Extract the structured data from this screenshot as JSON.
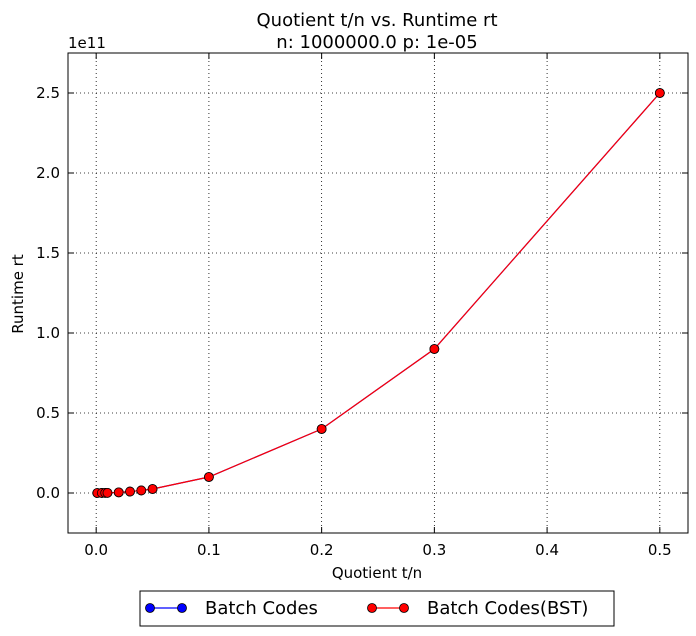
{
  "chart_data": {
    "type": "line",
    "title": "Quotient t/n vs. Runtime rt",
    "subtitle": "n: 1000000.0 p: 1e-05",
    "xlabel": "Quotient t/n",
    "ylabel": "Runtime rt",
    "y_offset_label": "1e11",
    "xlim": [
      -0.025,
      0.525
    ],
    "ylim": [
      -25000000000,
      275000000000
    ],
    "xticks": [
      0.0,
      0.1,
      0.2,
      0.3,
      0.4,
      0.5
    ],
    "xtick_labels": [
      "0.0",
      "0.1",
      "0.2",
      "0.3",
      "0.4",
      "0.5"
    ],
    "yticks": [
      0,
      50000000000,
      100000000000,
      150000000000,
      200000000000,
      250000000000
    ],
    "ytick_labels": [
      "0.0",
      "0.5",
      "1.0",
      "1.5",
      "2.0",
      "2.5"
    ],
    "grid": true,
    "legend_position": "bottom-center",
    "x": [
      0.001,
      0.005,
      0.008,
      0.01,
      0.02,
      0.03,
      0.04,
      0.05,
      0.1,
      0.2,
      0.3,
      0.5
    ],
    "series": [
      {
        "name": "Batch Codes",
        "color": "#0000ff",
        "values": [
          1000000,
          25000000,
          64000000,
          100000000,
          400000000,
          900000000,
          1600000000,
          2500000000,
          10000000000,
          40000000000,
          90000000000,
          250000000000
        ]
      },
      {
        "name": "Batch Codes(BST)",
        "color": "#ff0000",
        "values": [
          1000000,
          25000000,
          64000000,
          100000000,
          400000000,
          900000000,
          1600000000,
          2500000000,
          10000000000,
          40000000000,
          90000000000,
          250000000000
        ]
      }
    ]
  }
}
